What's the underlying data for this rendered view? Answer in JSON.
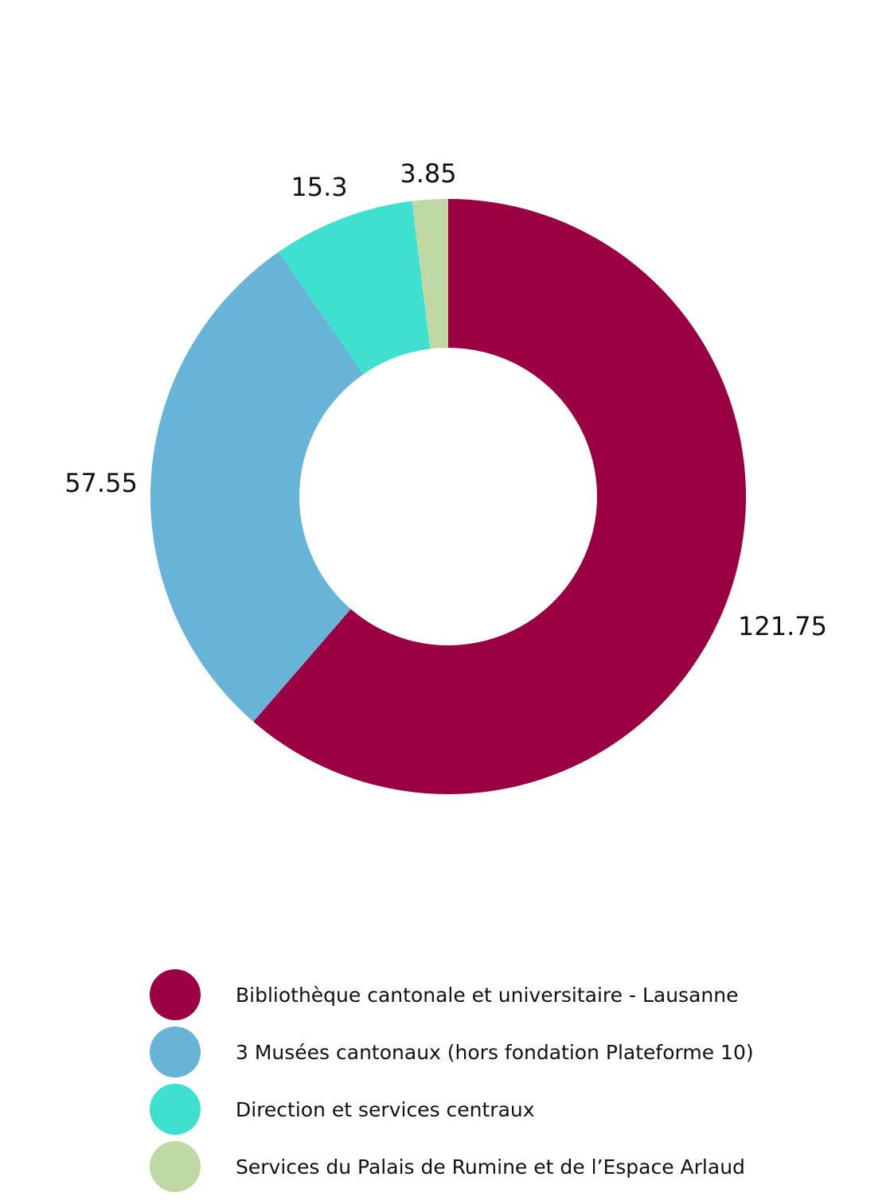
{
  "chart_data": {
    "type": "pie",
    "variant": "donut",
    "title": "",
    "categories": [
      "Bibliothèque cantonale et universitaire - Lausanne",
      "3 Musées cantonaux (hors fondation Plateforme 10)",
      "Direction et services centraux",
      "Services du Palais de Rumine et de l’Espace Arlaud"
    ],
    "values": [
      121.75,
      57.55,
      15.3,
      3.85
    ],
    "value_labels": [
      "121.75",
      "57.55",
      "15.3",
      "3.85"
    ],
    "colors": [
      "#9b0042",
      "#68b4d8",
      "#40e0d0",
      "#bfd9a4"
    ],
    "start_angle": "12 o'clock",
    "direction": "clockwise",
    "legend_position": "bottom"
  }
}
